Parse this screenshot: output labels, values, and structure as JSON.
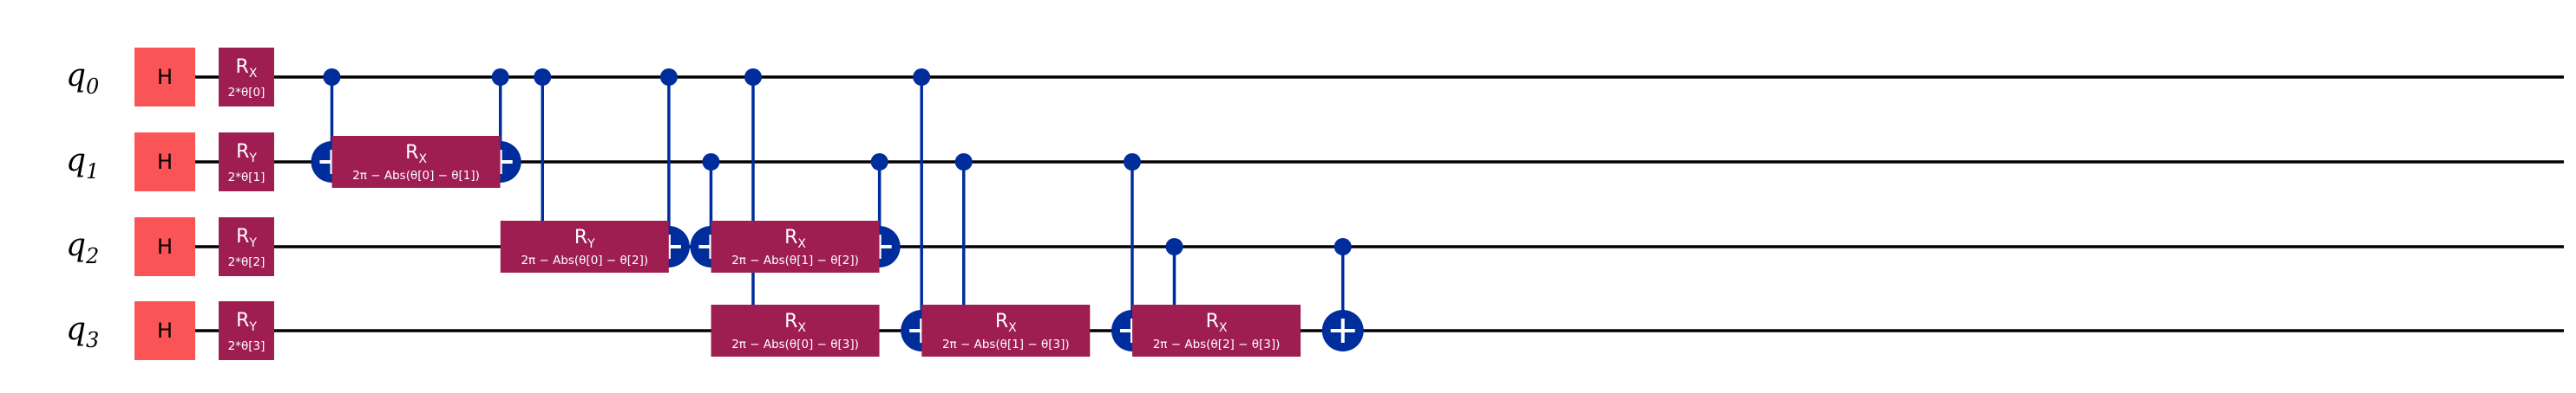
{
  "colors": {
    "h_gate": "#FA5456",
    "rot_gate": "#9E1E52",
    "cx": "#002D9C",
    "wire": "#000000"
  },
  "qubits": [
    {
      "name": "q",
      "index": "0"
    },
    {
      "name": "q",
      "index": "1"
    },
    {
      "name": "q",
      "index": "2"
    },
    {
      "name": "q",
      "index": "3"
    }
  ],
  "h_gates": [
    {
      "qubit": 0,
      "label": "H"
    },
    {
      "qubit": 1,
      "label": "H"
    },
    {
      "qubit": 2,
      "label": "H"
    },
    {
      "qubit": 3,
      "label": "H"
    }
  ],
  "small_rotations": [
    {
      "qubit": 0,
      "base": "R",
      "axis": "X",
      "param": "2*θ[0]"
    },
    {
      "qubit": 1,
      "base": "R",
      "axis": "Y",
      "param": "2*θ[1]"
    },
    {
      "qubit": 2,
      "base": "R",
      "axis": "Y",
      "param": "2*θ[2]"
    },
    {
      "qubit": 3,
      "base": "R",
      "axis": "Y",
      "param": "2*θ[3]"
    }
  ],
  "wide_rotations": [
    {
      "qubit": 1,
      "step": 2,
      "base": "R",
      "axis": "X",
      "param": "2π − Abs(θ[0] − θ[1])"
    },
    {
      "qubit": 2,
      "step": 6,
      "base": "R",
      "axis": "Y",
      "param": "2π − Abs(θ[0] − θ[2])"
    },
    {
      "qubit": 2,
      "step": 11,
      "base": "R",
      "axis": "X",
      "param": "2π − Abs(θ[1] − θ[2])"
    },
    {
      "qubit": 3,
      "step": 11,
      "base": "R",
      "axis": "X",
      "param": "2π − Abs(θ[0] − θ[3])"
    },
    {
      "qubit": 3,
      "step": 16,
      "base": "R",
      "axis": "X",
      "param": "2π − Abs(θ[1] − θ[3])"
    },
    {
      "qubit": 3,
      "step": 21,
      "base": "R",
      "axis": "X",
      "param": "2π − Abs(θ[2] − θ[3])"
    }
  ],
  "cnots": [
    {
      "step": 0,
      "control": 0,
      "target": 1
    },
    {
      "step": 4,
      "control": 0,
      "target": 1
    },
    {
      "step": 5,
      "control": 0,
      "target": 2
    },
    {
      "step": 8,
      "control": 0,
      "target": 2
    },
    {
      "step": 9,
      "control": 1,
      "target": 2
    },
    {
      "step": 10,
      "control": 0,
      "target": 3
    },
    {
      "step": 13,
      "control": 1,
      "target": 2
    },
    {
      "step": 14,
      "control": 0,
      "target": 3
    },
    {
      "step": 15,
      "control": 1,
      "target": 3
    },
    {
      "step": 19,
      "control": 1,
      "target": 3
    },
    {
      "step": 20,
      "control": 2,
      "target": 3
    },
    {
      "step": 24,
      "control": 2,
      "target": 3
    }
  ]
}
